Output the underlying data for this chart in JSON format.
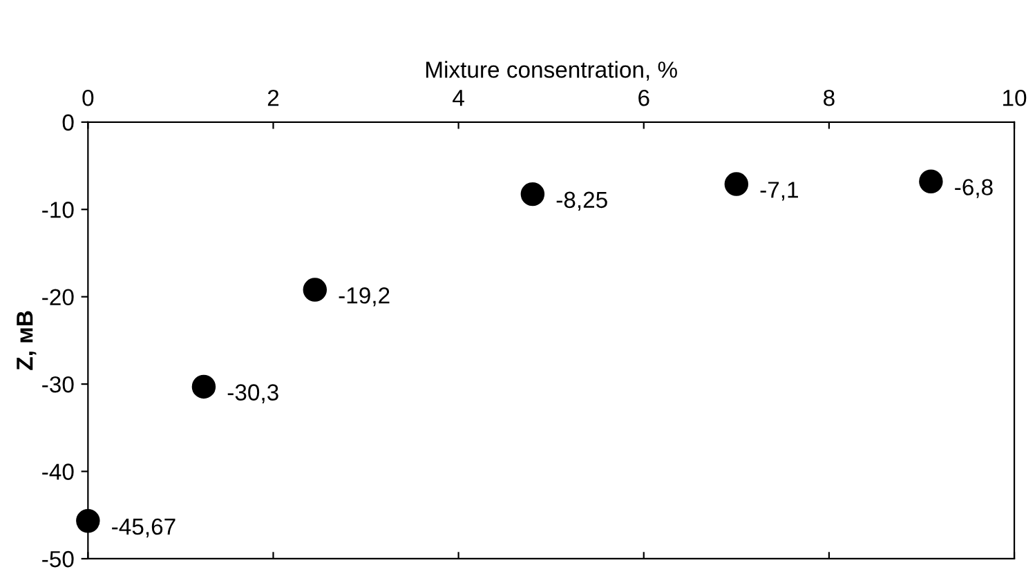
{
  "chart_data": {
    "type": "scatter",
    "xlabel": "Mixture consentration, %",
    "ylabel": "Z, мВ",
    "x": [
      0,
      1.25,
      2.45,
      4.8,
      7.0,
      9.1
    ],
    "series": [
      {
        "color": "#000000",
        "values": [
          -45.67,
          -30.3,
          -19.2,
          -8.25,
          -7.1,
          -6.8
        ],
        "value_labels": [
          "-45,67",
          "-30,3",
          "-19,2",
          "-8,25",
          "-7,1",
          "-6,8"
        ]
      }
    ],
    "xlim": [
      0,
      10
    ],
    "xticks": [
      0,
      2,
      4,
      6,
      8,
      10
    ],
    "ylim": [
      -50,
      0
    ],
    "yticks": [
      -50,
      -40,
      -30,
      -20,
      -10,
      0
    ],
    "marker": "circle",
    "grid": false,
    "legend": false
  }
}
